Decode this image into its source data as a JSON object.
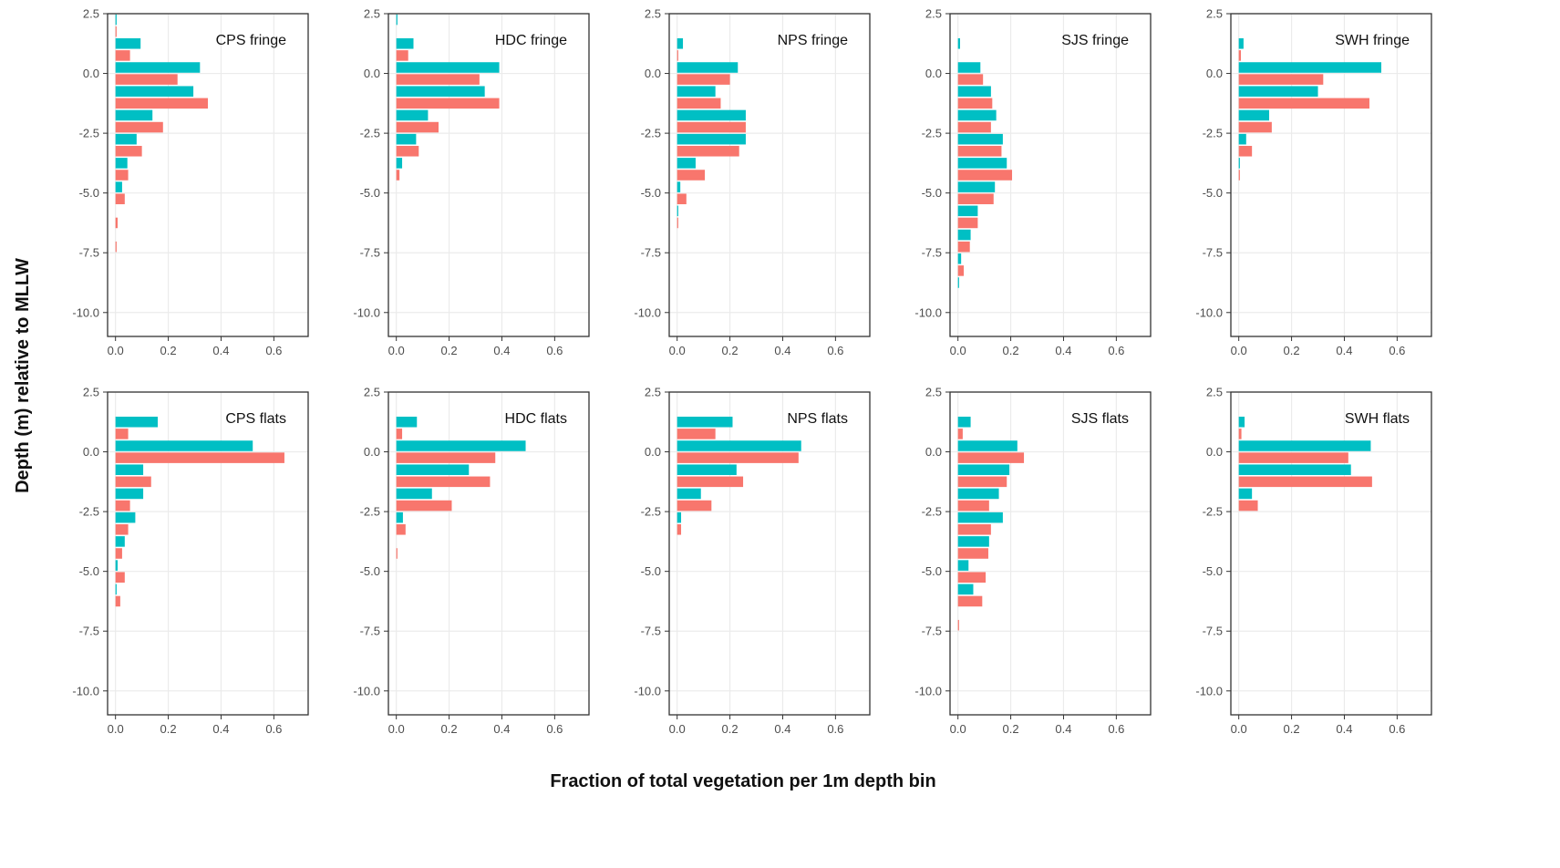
{
  "figure": {
    "ylabel": "Depth (m) relative to MLLW",
    "xlabel": "Fraction of total vegetation per 1m depth bin"
  },
  "colors": {
    "series_a": "#00bfc4",
    "series_b": "#f8766d",
    "grid": "#ebebeb",
    "frame": "#333333"
  },
  "chart_data": {
    "type": "bar",
    "orientation": "horizontal",
    "facets": "2 rows x 5 columns",
    "xlim": [
      -0.03,
      0.73
    ],
    "ylim": [
      -11,
      2.5
    ],
    "x_ticks": [
      0.0,
      0.2,
      0.4,
      0.6
    ],
    "x_tick_labels": [
      "0.0",
      "0.2",
      "0.4",
      "0.6"
    ],
    "y_ticks": [
      2.5,
      0.0,
      -2.5,
      -5.0,
      -7.5,
      -10.0
    ],
    "y_tick_labels": [
      "2.5",
      "0.0",
      "-2.5",
      "-5.0",
      "-7.5",
      "-10.0"
    ],
    "grid": true,
    "legend": "none",
    "bin_centers": [
      2.0,
      1.0,
      0.0,
      -1.0,
      -2.0,
      -3.0,
      -4.0,
      -5.0,
      -6.0,
      -7.0,
      -8.0,
      -9.0
    ],
    "panels": [
      {
        "title": "CPS fringe",
        "series": [
          {
            "values": [
              0.003,
              0.095,
              0.32,
              0.295,
              0.14,
              0.08,
              0.045,
              0.025,
              0.0,
              0.0,
              0.0,
              0.0
            ]
          },
          {
            "values": [
              0.003,
              0.055,
              0.235,
              0.35,
              0.18,
              0.1,
              0.048,
              0.035,
              0.008,
              0.003,
              0.0,
              0.0
            ]
          }
        ]
      },
      {
        "title": "HDC fringe",
        "series": [
          {
            "values": [
              0.003,
              0.065,
              0.39,
              0.335,
              0.12,
              0.075,
              0.022,
              0.0,
              0.0,
              0.0,
              0.0,
              0.0
            ]
          },
          {
            "values": [
              0.0,
              0.045,
              0.315,
              0.39,
              0.16,
              0.085,
              0.012,
              0.0,
              0.0,
              0.0,
              0.0,
              0.0
            ]
          }
        ]
      },
      {
        "title": "NPS fringe",
        "series": [
          {
            "values": [
              0.0,
              0.022,
              0.23,
              0.145,
              0.26,
              0.26,
              0.07,
              0.012,
              0.003,
              0.0,
              0.0,
              0.0
            ]
          },
          {
            "values": [
              0.0,
              0.003,
              0.2,
              0.165,
              0.26,
              0.235,
              0.105,
              0.035,
              0.003,
              0.0,
              0.0,
              0.0
            ]
          }
        ]
      },
      {
        "title": "SJS fringe",
        "series": [
          {
            "values": [
              0.0,
              0.008,
              0.085,
              0.125,
              0.145,
              0.17,
              0.185,
              0.14,
              0.075,
              0.048,
              0.012,
              0.003
            ]
          },
          {
            "values": [
              0.0,
              0.0,
              0.095,
              0.13,
              0.125,
              0.165,
              0.205,
              0.135,
              0.075,
              0.045,
              0.022,
              0.0
            ]
          }
        ]
      },
      {
        "title": "SWH fringe",
        "series": [
          {
            "values": [
              0.0,
              0.018,
              0.54,
              0.3,
              0.115,
              0.028,
              0.003,
              0.0,
              0.0,
              0.0,
              0.0,
              0.0
            ]
          },
          {
            "values": [
              0.0,
              0.008,
              0.32,
              0.495,
              0.125,
              0.05,
              0.003,
              0.0,
              0.0,
              0.0,
              0.0,
              0.0
            ]
          }
        ]
      },
      {
        "title": "CPS flats",
        "series": [
          {
            "values": [
              0.0,
              0.16,
              0.52,
              0.105,
              0.105,
              0.075,
              0.035,
              0.008,
              0.003,
              0.0,
              0.0,
              0.0
            ]
          },
          {
            "values": [
              0.0,
              0.048,
              0.64,
              0.135,
              0.055,
              0.048,
              0.025,
              0.035,
              0.018,
              0.0,
              0.0,
              0.0
            ]
          }
        ]
      },
      {
        "title": "HDC flats",
        "series": [
          {
            "values": [
              0.0,
              0.078,
              0.49,
              0.275,
              0.135,
              0.025,
              0.0,
              0.0,
              0.0,
              0.0,
              0.0,
              0.0
            ]
          },
          {
            "values": [
              0.0,
              0.022,
              0.375,
              0.355,
              0.21,
              0.035,
              0.003,
              0.0,
              0.0,
              0.0,
              0.0,
              0.0
            ]
          }
        ]
      },
      {
        "title": "NPS flats",
        "series": [
          {
            "values": [
              0.0,
              0.21,
              0.47,
              0.225,
              0.09,
              0.015,
              0.0,
              0.0,
              0.0,
              0.0,
              0.0,
              0.0
            ]
          },
          {
            "values": [
              0.0,
              0.145,
              0.46,
              0.25,
              0.13,
              0.015,
              0.0,
              0.0,
              0.0,
              0.0,
              0.0,
              0.0
            ]
          }
        ]
      },
      {
        "title": "SJS flats",
        "series": [
          {
            "values": [
              0.0,
              0.048,
              0.225,
              0.195,
              0.155,
              0.17,
              0.118,
              0.04,
              0.058,
              0.0,
              0.0,
              0.0
            ]
          },
          {
            "values": [
              0.0,
              0.018,
              0.25,
              0.185,
              0.118,
              0.125,
              0.115,
              0.105,
              0.092,
              0.003,
              0.0,
              0.0
            ]
          }
        ]
      },
      {
        "title": "SWH flats",
        "series": [
          {
            "values": [
              0.0,
              0.022,
              0.5,
              0.425,
              0.05,
              0.0,
              0.0,
              0.0,
              0.0,
              0.0,
              0.0,
              0.0
            ]
          },
          {
            "values": [
              0.0,
              0.01,
              0.415,
              0.505,
              0.072,
              0.0,
              0.0,
              0.0,
              0.0,
              0.0,
              0.0,
              0.0
            ]
          }
        ]
      }
    ]
  }
}
